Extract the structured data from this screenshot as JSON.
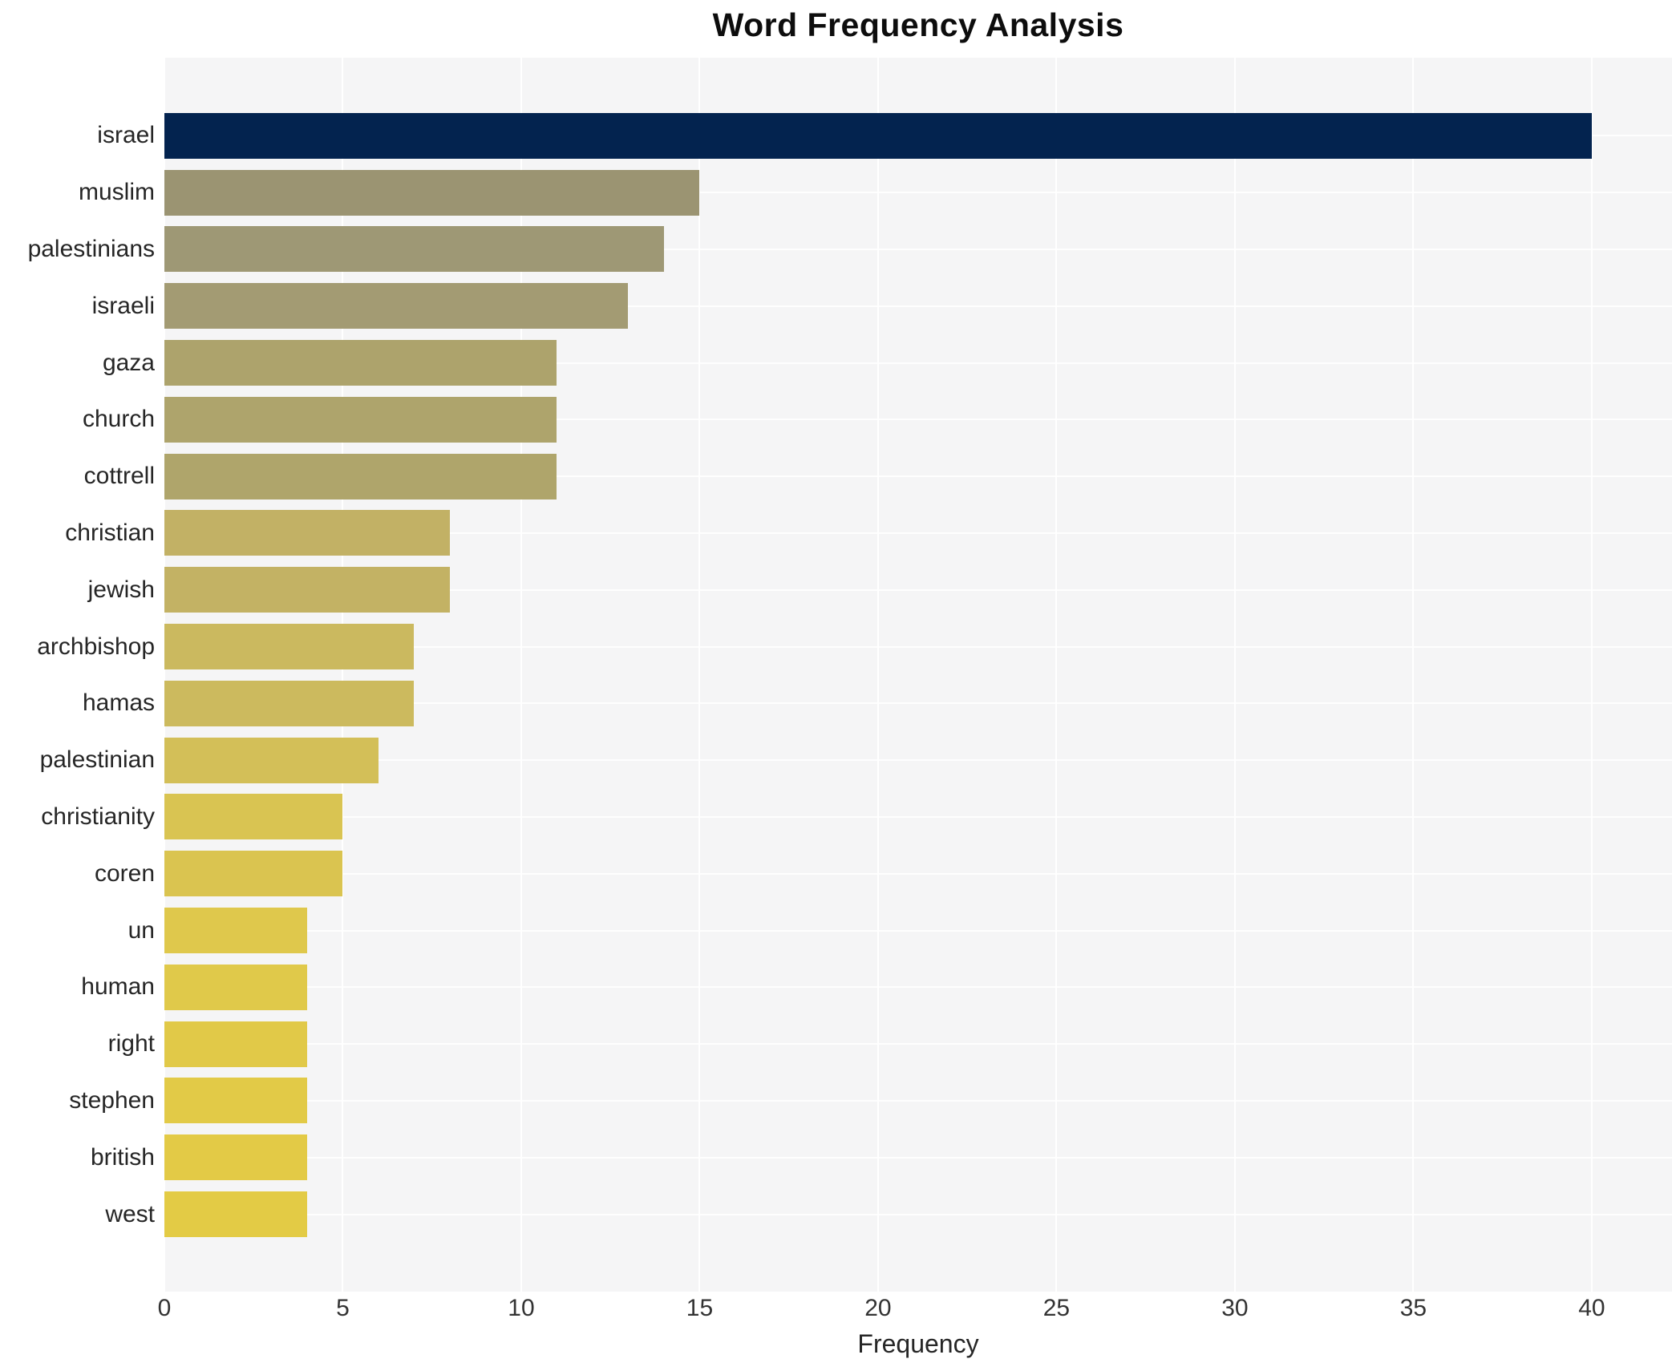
{
  "chart_data": {
    "type": "bar",
    "orientation": "horizontal",
    "title": "Word Frequency Analysis",
    "xlabel": "Frequency",
    "ylabel": "",
    "categories": [
      "israel",
      "muslim",
      "palestinians",
      "israeli",
      "gaza",
      "church",
      "cottrell",
      "christian",
      "jewish",
      "archbishop",
      "hamas",
      "palestinian",
      "christianity",
      "coren",
      "un",
      "human",
      "right",
      "stephen",
      "british",
      "west"
    ],
    "values": [
      40,
      15,
      14,
      13,
      11,
      11,
      11,
      8,
      8,
      7,
      7,
      6,
      5,
      5,
      4,
      4,
      4,
      4,
      4,
      4
    ],
    "bar_colors": [
      "#03234f",
      "#9b9472",
      "#9e9875",
      "#a39b73",
      "#ada36c",
      "#aea46c",
      "#afa56b",
      "#c2b165",
      "#c3b264",
      "#cbb95f",
      "#ccba5e",
      "#d3bf58",
      "#d9c452",
      "#dac450",
      "#dfc84c",
      "#e0c94a",
      "#e1c948",
      "#e2ca47",
      "#e3ca46",
      "#e3cb45"
    ],
    "x_ticks": [
      0,
      5,
      10,
      15,
      20,
      25,
      30,
      35,
      40
    ],
    "xlim": [
      0,
      42.25
    ],
    "grid": "on",
    "panel_background": "#f5f5f6",
    "gridline_color": "#ffffff",
    "legend": "none"
  }
}
